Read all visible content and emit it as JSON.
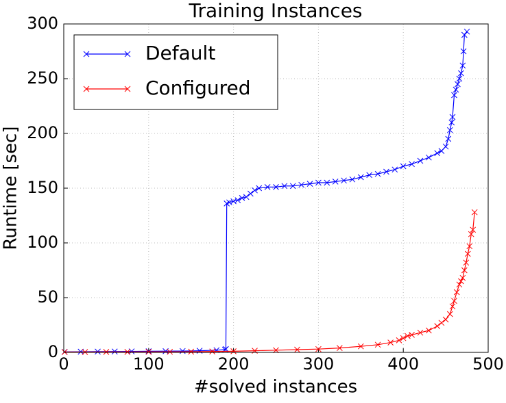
{
  "chart_data": {
    "type": "line",
    "title": "Training Instances",
    "xlabel": "#solved instances",
    "ylabel": "Runtime [sec]",
    "xlim": [
      0,
      500
    ],
    "xticks": [
      0,
      100,
      200,
      300,
      400,
      500
    ],
    "ylim": [
      0,
      300
    ],
    "yticks": [
      0,
      50,
      100,
      150,
      200,
      250,
      300
    ],
    "grid": true,
    "legend": "upper left",
    "series": [
      {
        "name": "Default",
        "color": "#0000ff",
        "x": [
          1,
          20,
          40,
          60,
          80,
          100,
          120,
          140,
          160,
          180,
          190,
          191,
          192,
          195,
          200,
          205,
          210,
          215,
          220,
          225,
          230,
          240,
          250,
          260,
          270,
          280,
          290,
          300,
          310,
          320,
          330,
          340,
          350,
          360,
          370,
          380,
          390,
          400,
          410,
          420,
          430,
          440,
          445,
          450,
          453,
          455,
          457,
          458,
          460,
          462,
          464,
          466,
          468,
          470,
          471,
          472,
          475
        ],
        "values": [
          0.5,
          0.6,
          0.7,
          0.8,
          0.9,
          1.0,
          1.1,
          1.2,
          1.5,
          2,
          2.5,
          3,
          136,
          137,
          138,
          139,
          141,
          142,
          145,
          148,
          150,
          151,
          151,
          152,
          152,
          153,
          154,
          155,
          155,
          156,
          157,
          158,
          160,
          162,
          163,
          165,
          167,
          170,
          172,
          175,
          178,
          182,
          184,
          188,
          195,
          203,
          210,
          215,
          235,
          240,
          245,
          250,
          255,
          262,
          275,
          290,
          293
        ]
      },
      {
        "name": "Configured",
        "color": "#ff0000",
        "x": [
          1,
          25,
          50,
          75,
          100,
          125,
          150,
          175,
          200,
          225,
          250,
          275,
          300,
          325,
          350,
          370,
          385,
          395,
          400,
          405,
          410,
          420,
          430,
          440,
          445,
          450,
          455,
          458,
          460,
          463,
          466,
          468,
          470,
          472,
          474,
          476,
          478,
          480,
          482,
          484
        ],
        "values": [
          0.3,
          0.3,
          0.4,
          0.4,
          0.5,
          0.5,
          0.6,
          0.8,
          1,
          1.5,
          2,
          2.5,
          3,
          4,
          5.5,
          7,
          9,
          11,
          13,
          15,
          16,
          18,
          20,
          24,
          27,
          30,
          35,
          42,
          47,
          55,
          62,
          65,
          68,
          75,
          82,
          90,
          97,
          108,
          112,
          128
        ]
      }
    ]
  }
}
